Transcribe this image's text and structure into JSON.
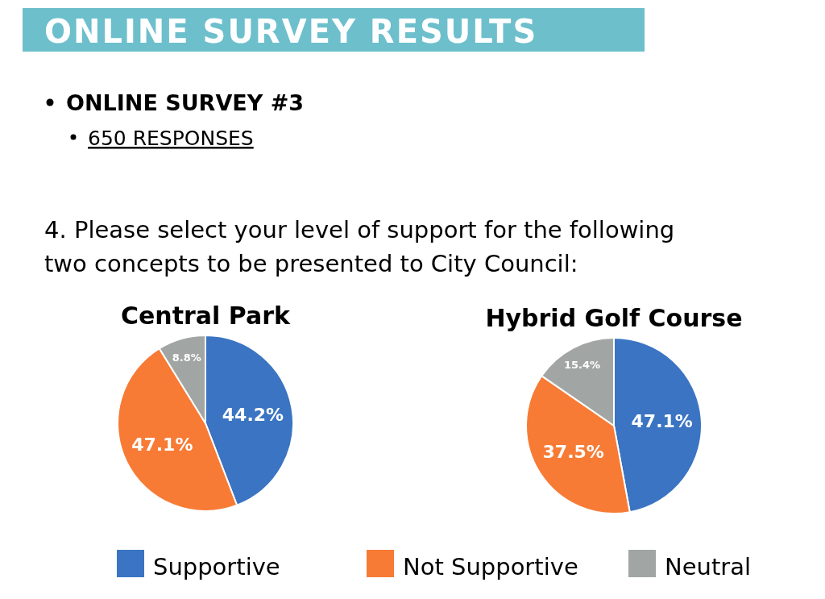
{
  "chart_data": [
    {
      "type": "other",
      "title": "ONLINE SURVEY RESULTS",
      "annotations": [
        "ONLINE SURVEY #3",
        "650 RESPONSES",
        "4. Please select your level of support for the following two concepts to be presented to City Council:"
      ]
    },
    {
      "type": "pie",
      "title": "Central Park",
      "categories": [
        "Supportive",
        "Not Supportive",
        "Neutral"
      ],
      "values": [
        44.2,
        47.1,
        8.8
      ],
      "value_labels": [
        "44.2%",
        "47.1%",
        "8.8%"
      ],
      "colors": [
        "#3a74c2",
        "#f77b35",
        "#a1a6a5"
      ],
      "legend": "bottom"
    },
    {
      "type": "pie",
      "title": "Hybrid Golf Course",
      "categories": [
        null,
        null,
        null
      ],
      "values": [
        47.1,
        37.5,
        15.4
      ],
      "value_labels": [
        "47.1%",
        "37.5%",
        "15.4%"
      ],
      "colors": [
        "#3a74c2",
        "#f77b35",
        "#a1a6a5"
      ]
    }
  ]
}
